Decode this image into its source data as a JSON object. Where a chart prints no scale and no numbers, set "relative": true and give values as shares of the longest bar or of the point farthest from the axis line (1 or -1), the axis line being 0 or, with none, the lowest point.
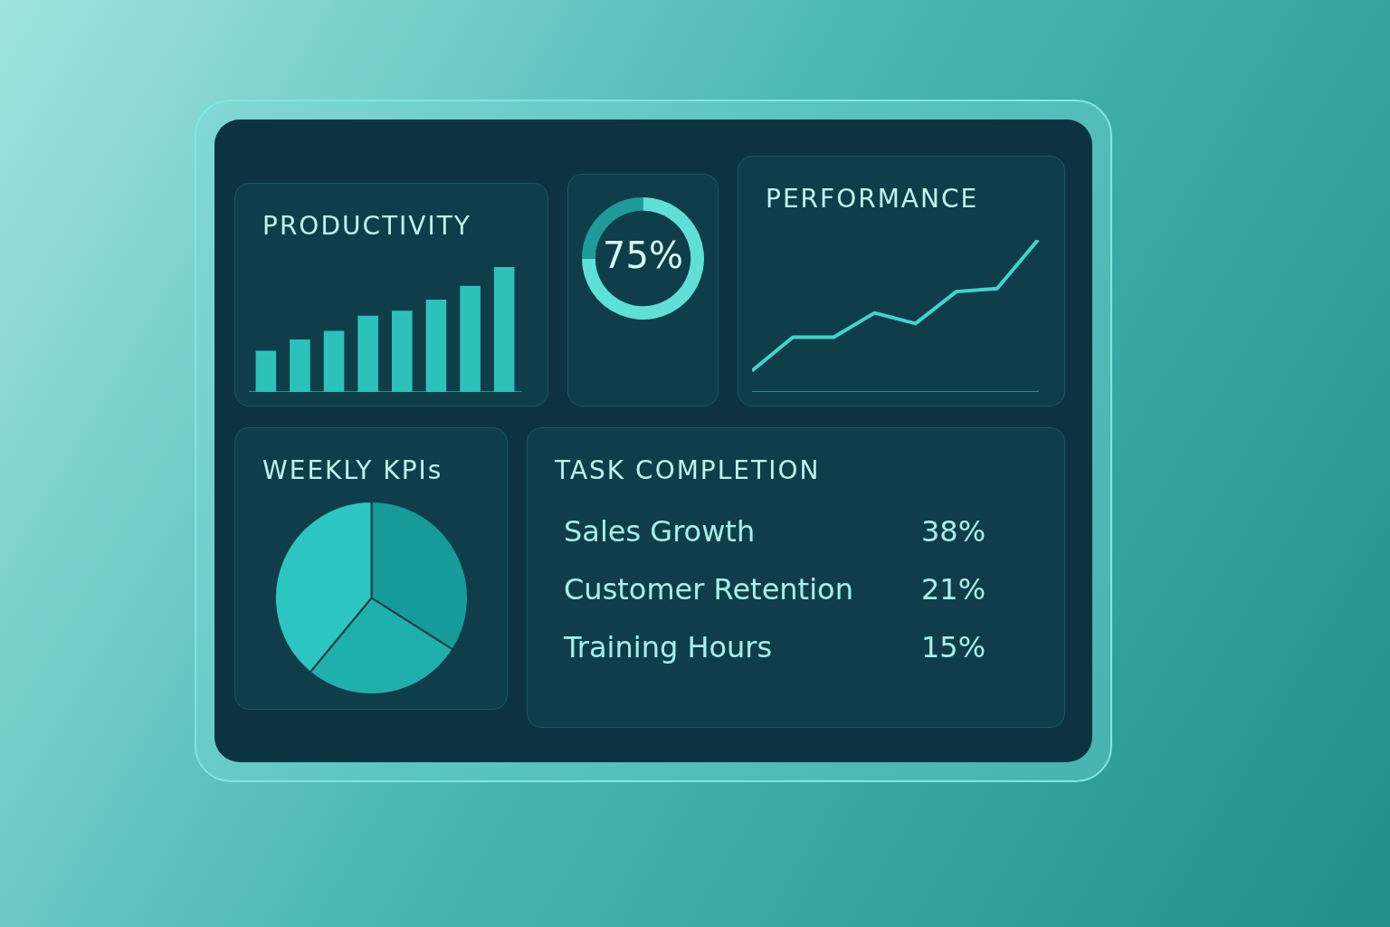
{
  "chart_data": [
    {
      "type": "bar",
      "title": "PRODUCTIVITY",
      "relative": true,
      "categories": [
        null,
        null,
        null,
        null,
        null,
        null,
        null,
        null
      ],
      "values": [
        0.33,
        0.42,
        0.49,
        0.61,
        0.65,
        0.74,
        0.85,
        1
      ],
      "color": "#2cc2ba",
      "grid": false,
      "legend": false
    },
    {
      "type": "donut",
      "categories": [
        null,
        null
      ],
      "values": [
        75,
        25
      ],
      "colors": [
        "#5fe0d6",
        "#1d9c99"
      ],
      "value_labels": [
        "75%",
        null
      ],
      "legend": false
    },
    {
      "type": "line",
      "title": "PERFORMANCE",
      "relative": true,
      "categories": [
        null,
        null,
        null,
        null,
        null,
        null,
        null,
        null
      ],
      "values": [
        0.14,
        0.36,
        0.36,
        0.52,
        0.45,
        0.66,
        0.68,
        1
      ],
      "color": "#3dd6cc",
      "marker": "none",
      "line_style": "solid",
      "grid": false,
      "legend": false
    },
    {
      "type": "pie",
      "title": "WEEKLY KPIs",
      "categories": [
        null,
        null,
        null
      ],
      "values": [
        34,
        27,
        39
      ],
      "colors": [
        "#169a9a",
        "#1fb0ad",
        "#2cc6c2"
      ],
      "legend": false
    },
    {
      "type": "other",
      "title": "TASK COMPLETION",
      "categories": [
        "Sales Growth",
        "Customer Retention",
        "Training Hours"
      ],
      "annotations": [
        "38%",
        "21%",
        "15%"
      ]
    }
  ]
}
